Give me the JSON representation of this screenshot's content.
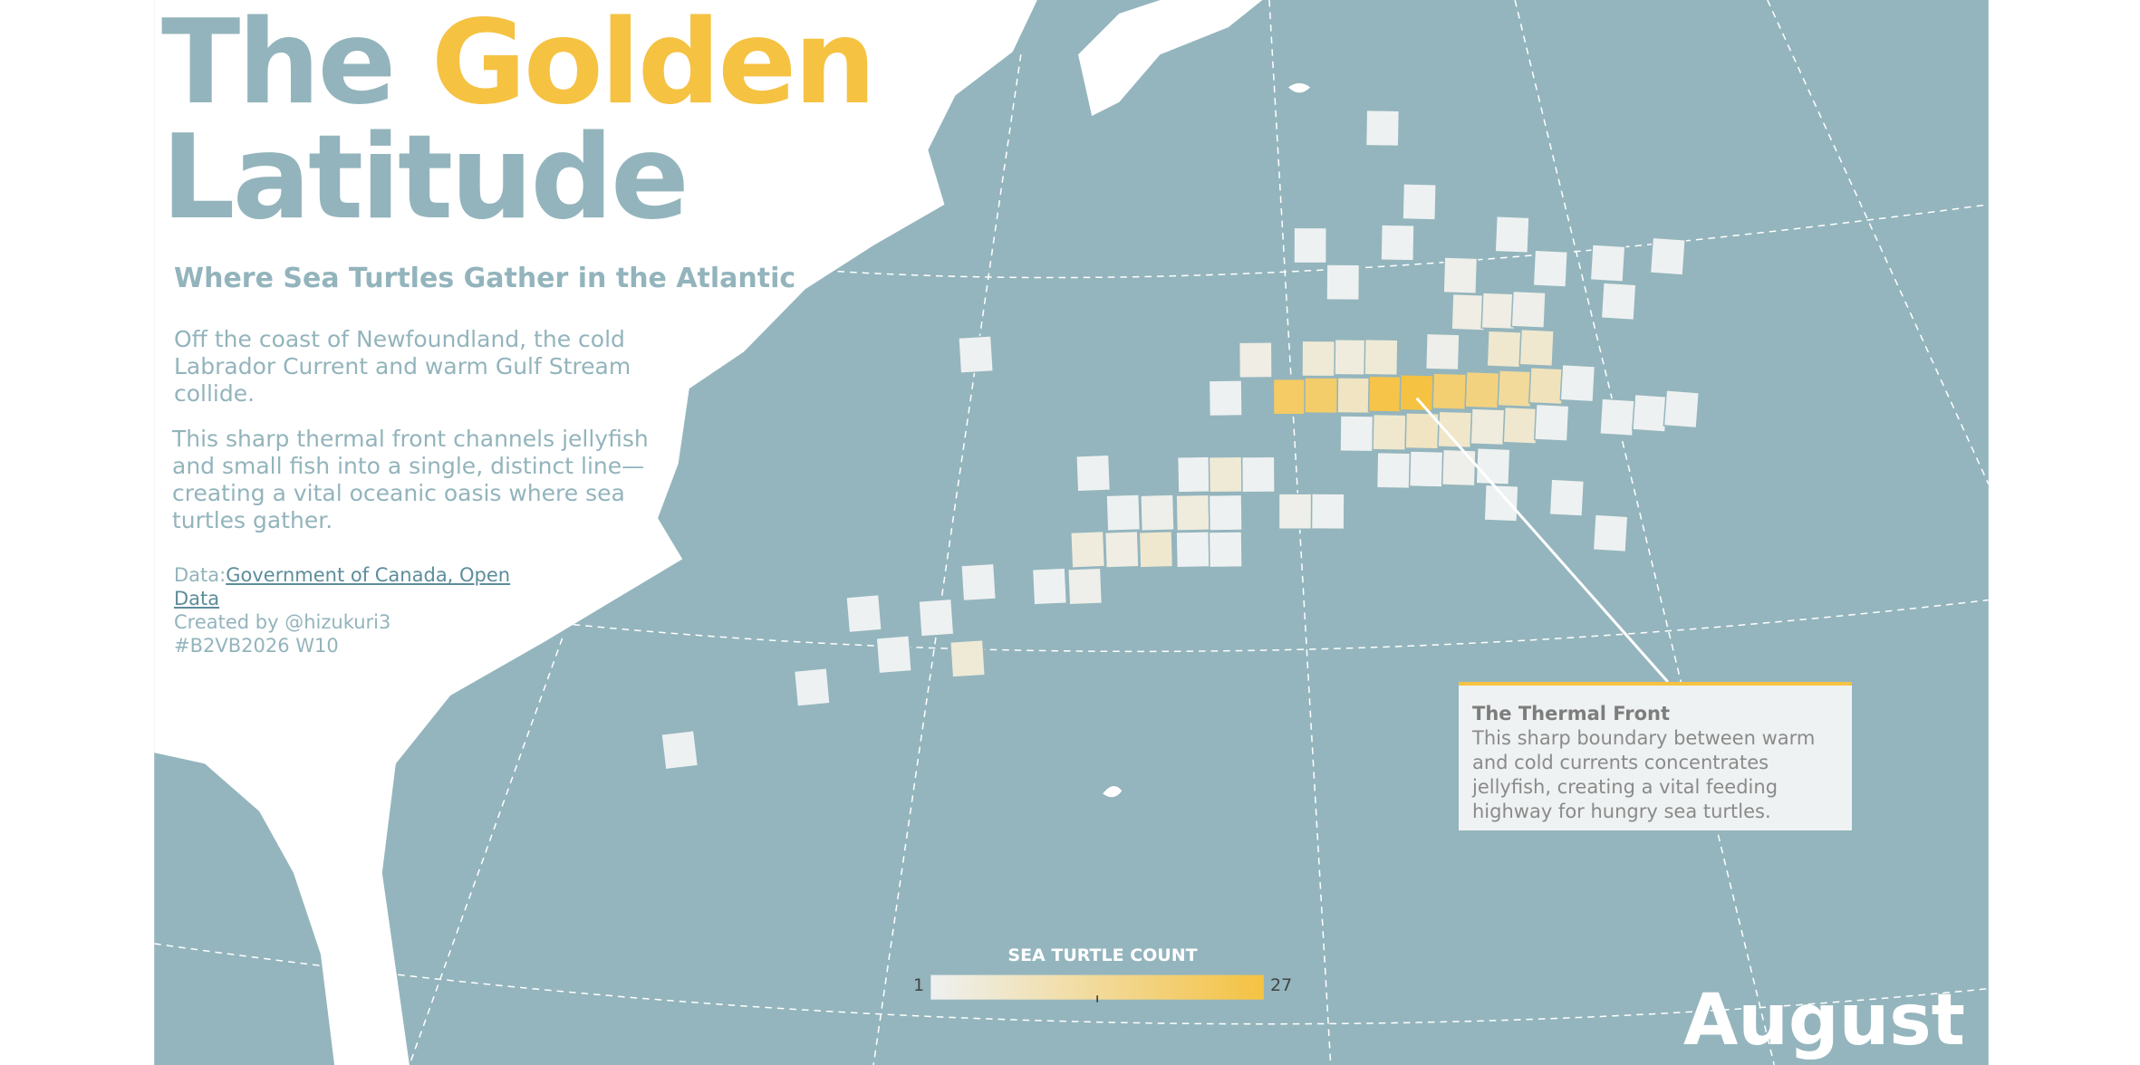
{
  "title": {
    "first": "The",
    "highlight": "Golden",
    "second": "Latitude"
  },
  "subtitle": "Where Sea Turtles Gather in the Atlantic",
  "paragraphs": [
    "Off the coast of Newfoundland, the cold Labrador Current and warm Gulf Stream collide.",
    "This sharp thermal front channels jellyfish and small fish into a single, distinct line—creating a vital oceanic oasis where sea turtles gather."
  ],
  "credits": {
    "data_label": "Data:",
    "data_link": "Government of Canada, Open Data",
    "creator": "Created by @hizukuri3",
    "tag": "#B2VB2026 W10"
  },
  "annotation": {
    "title": "The Thermal Front",
    "body": "This sharp boundary between warm and cold currents concentrates jellyfish, creating a vital feeding highway for hungry sea turtles."
  },
  "legend": {
    "title": "SEA TURTLE COUNT",
    "min": 1,
    "max": 27,
    "colors": [
      "#eef1f1",
      "#f5c242"
    ]
  },
  "month": "August",
  "cells": [
    1,
    1,
    1,
    1,
    1,
    1,
    1,
    1,
    1,
    2,
    1,
    3,
    3,
    2,
    3,
    5,
    4,
    5,
    2,
    6,
    6,
    1,
    22,
    21,
    8,
    26,
    27,
    20,
    18,
    14,
    9,
    1,
    1,
    6,
    8,
    7,
    4,
    6,
    1,
    1,
    1,
    1,
    1,
    1,
    2,
    1,
    1,
    1,
    1,
    1,
    1,
    1,
    5,
    1,
    1,
    2,
    4,
    1,
    2,
    1,
    4,
    3,
    6,
    1,
    1,
    1,
    2,
    1,
    1,
    1,
    1,
    5,
    1,
    1
  ]
}
